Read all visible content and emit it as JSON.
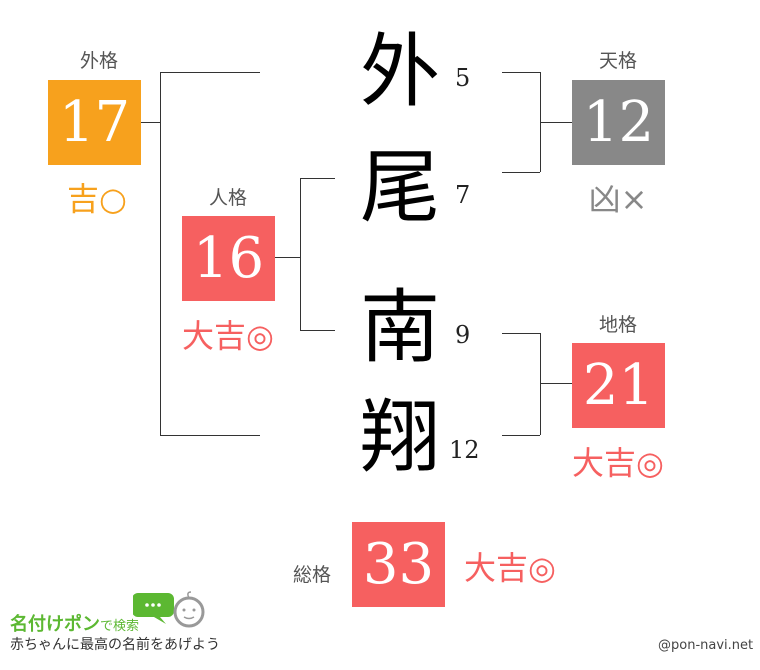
{
  "name": {
    "chars": [
      "外",
      "尾",
      "南",
      "翔"
    ],
    "strokes": [
      "5",
      "7",
      "9",
      "12"
    ]
  },
  "gaikaku": {
    "label": "外格",
    "value": "17",
    "fortune": "吉○",
    "color": "#f7a11d"
  },
  "jinkaku": {
    "label": "人格",
    "value": "16",
    "fortune": "大吉◎",
    "color": "#f66060"
  },
  "tenkaku": {
    "label": "天格",
    "value": "12",
    "fortune": "凶×",
    "color": "#888888"
  },
  "chikaku": {
    "label": "地格",
    "value": "21",
    "fortune": "大吉◎",
    "color": "#f66060"
  },
  "soukaku": {
    "label": "総格",
    "value": "33",
    "fortune": "大吉◎",
    "color": "#f66060"
  },
  "logo": {
    "title": "名付けポン",
    "suffix": "で検索",
    "tagline": "赤ちゃんに最高の名前をあげよう"
  },
  "credit": "@pon-navi.net"
}
